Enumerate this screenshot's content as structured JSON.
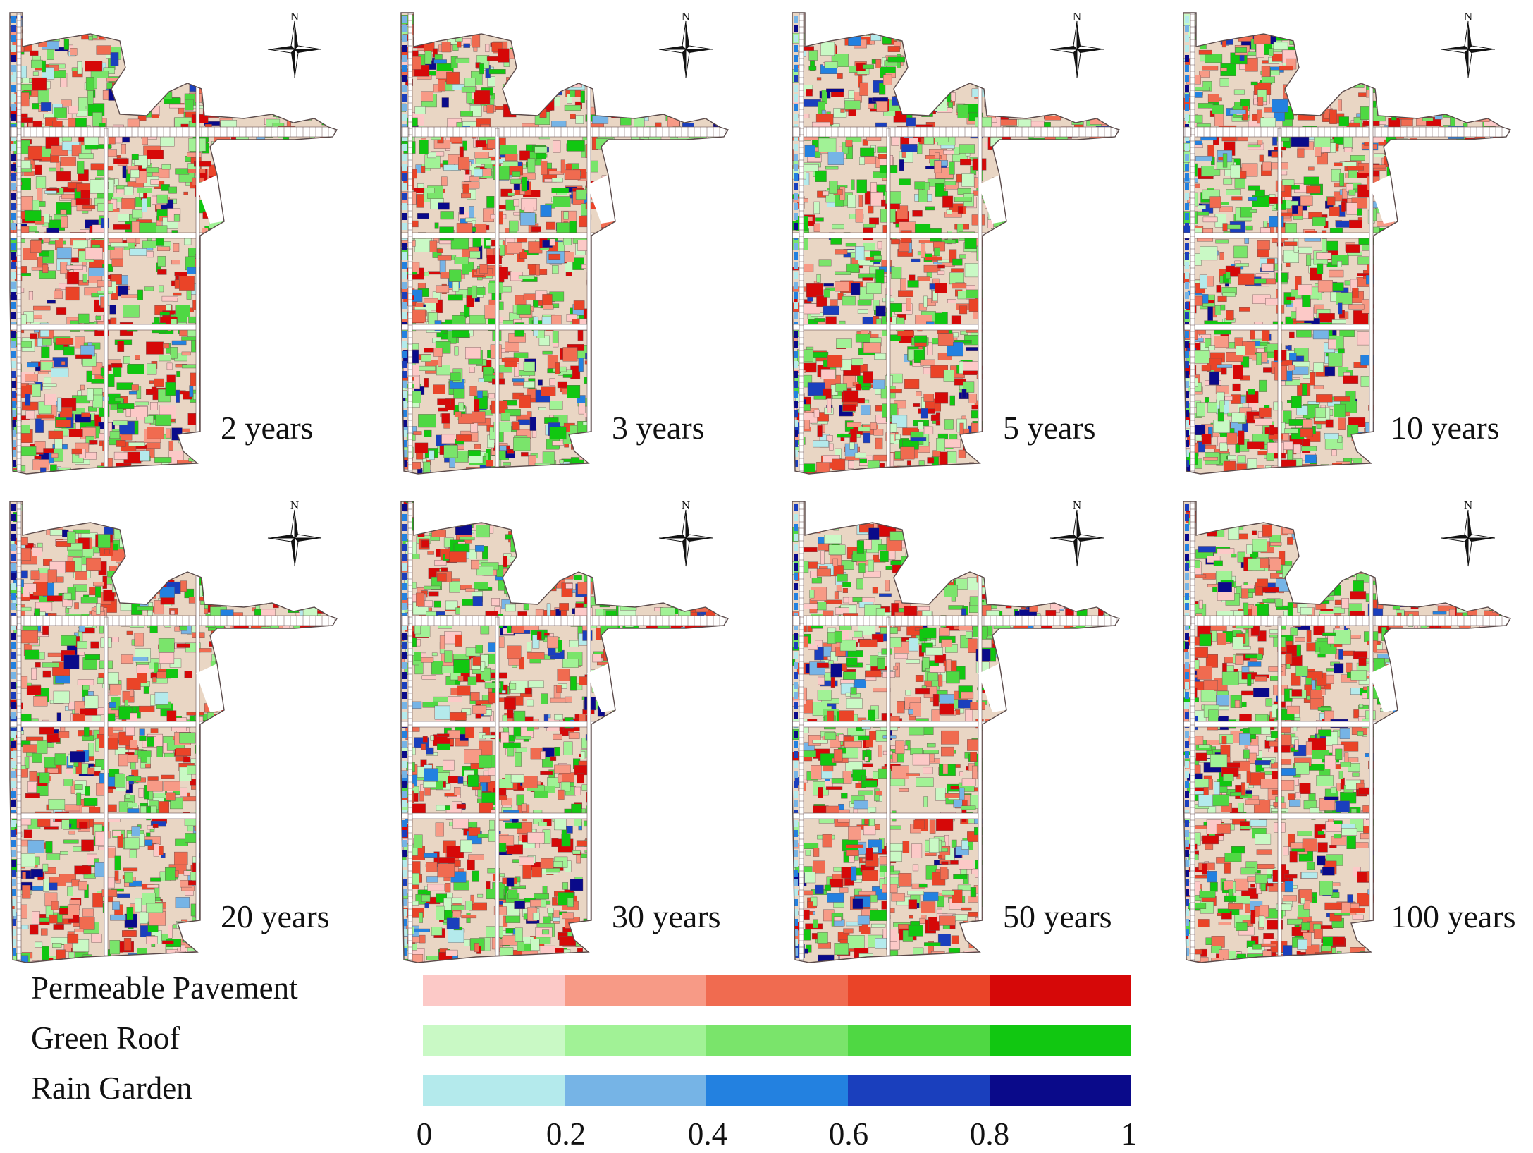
{
  "map_panels": [
    {
      "period": "2 years"
    },
    {
      "period": "3 years"
    },
    {
      "period": "5 years"
    },
    {
      "period": "10 years"
    },
    {
      "period": "20 years"
    },
    {
      "period": "30 years"
    },
    {
      "period": "50 years"
    },
    {
      "period": "100 years"
    }
  ],
  "north_label": "N",
  "legend": {
    "rows": [
      {
        "label": "Permeable Pavement",
        "colors": [
          "#fcc9c7",
          "#f79a86",
          "#f06b50",
          "#ea4428",
          "#d60808"
        ]
      },
      {
        "label": "Green Roof",
        "colors": [
          "#c9f9c5",
          "#a1f296",
          "#7ae46b",
          "#4fd843",
          "#11c711"
        ]
      },
      {
        "label": "Rain Garden",
        "colors": [
          "#b4eaec",
          "#76b4e6",
          "#2381e0",
          "#1a3fbd",
          "#0a0a8a"
        ]
      }
    ],
    "ticks": [
      "0",
      "0.2",
      "0.4",
      "0.6",
      "0.8",
      "1"
    ]
  },
  "colors": {
    "road": "#ffffff",
    "parcel_outline": "#6b5050",
    "base_fill": "#e9d6c4"
  }
}
